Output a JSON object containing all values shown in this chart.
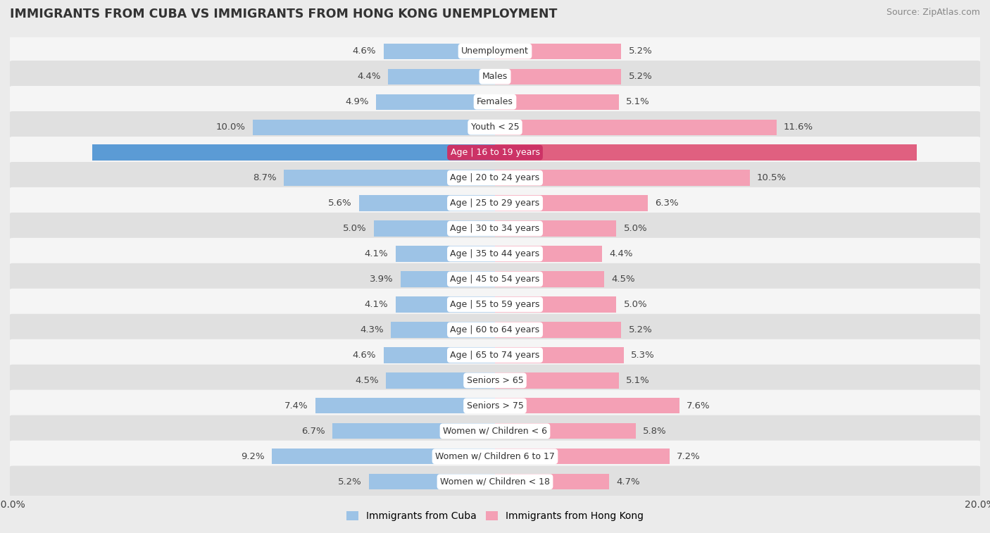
{
  "title": "IMMIGRANTS FROM CUBA VS IMMIGRANTS FROM HONG KONG UNEMPLOYMENT",
  "source": "Source: ZipAtlas.com",
  "categories": [
    "Unemployment",
    "Males",
    "Females",
    "Youth < 25",
    "Age | 16 to 19 years",
    "Age | 20 to 24 years",
    "Age | 25 to 29 years",
    "Age | 30 to 34 years",
    "Age | 35 to 44 years",
    "Age | 45 to 54 years",
    "Age | 55 to 59 years",
    "Age | 60 to 64 years",
    "Age | 65 to 74 years",
    "Seniors > 65",
    "Seniors > 75",
    "Women w/ Children < 6",
    "Women w/ Children 6 to 17",
    "Women w/ Children < 18"
  ],
  "cuba_values": [
    4.6,
    4.4,
    4.9,
    10.0,
    16.6,
    8.7,
    5.6,
    5.0,
    4.1,
    3.9,
    4.1,
    4.3,
    4.6,
    4.5,
    7.4,
    6.7,
    9.2,
    5.2
  ],
  "hk_values": [
    5.2,
    5.2,
    5.1,
    11.6,
    17.4,
    10.5,
    6.3,
    5.0,
    4.4,
    4.5,
    5.0,
    5.2,
    5.3,
    5.1,
    7.6,
    5.8,
    7.2,
    4.7
  ],
  "cuba_color": "#9dc3e6",
  "hk_color": "#f4a0b5",
  "cuba_color_highlight": "#5b9bd5",
  "hk_color_highlight": "#e06080",
  "highlight_row": 4,
  "x_max": 20.0,
  "background_color": "#ebebeb",
  "row_bg_light": "#f5f5f5",
  "row_bg_dark": "#e0e0e0",
  "bar_height": 0.62,
  "legend_cuba": "Immigrants from Cuba",
  "legend_hk": "Immigrants from Hong Kong",
  "value_fontsize": 9.5,
  "label_fontsize": 9.0,
  "title_fontsize": 12.5,
  "source_fontsize": 9.0,
  "legend_fontsize": 10.0,
  "axis_label_fontsize": 10.0
}
